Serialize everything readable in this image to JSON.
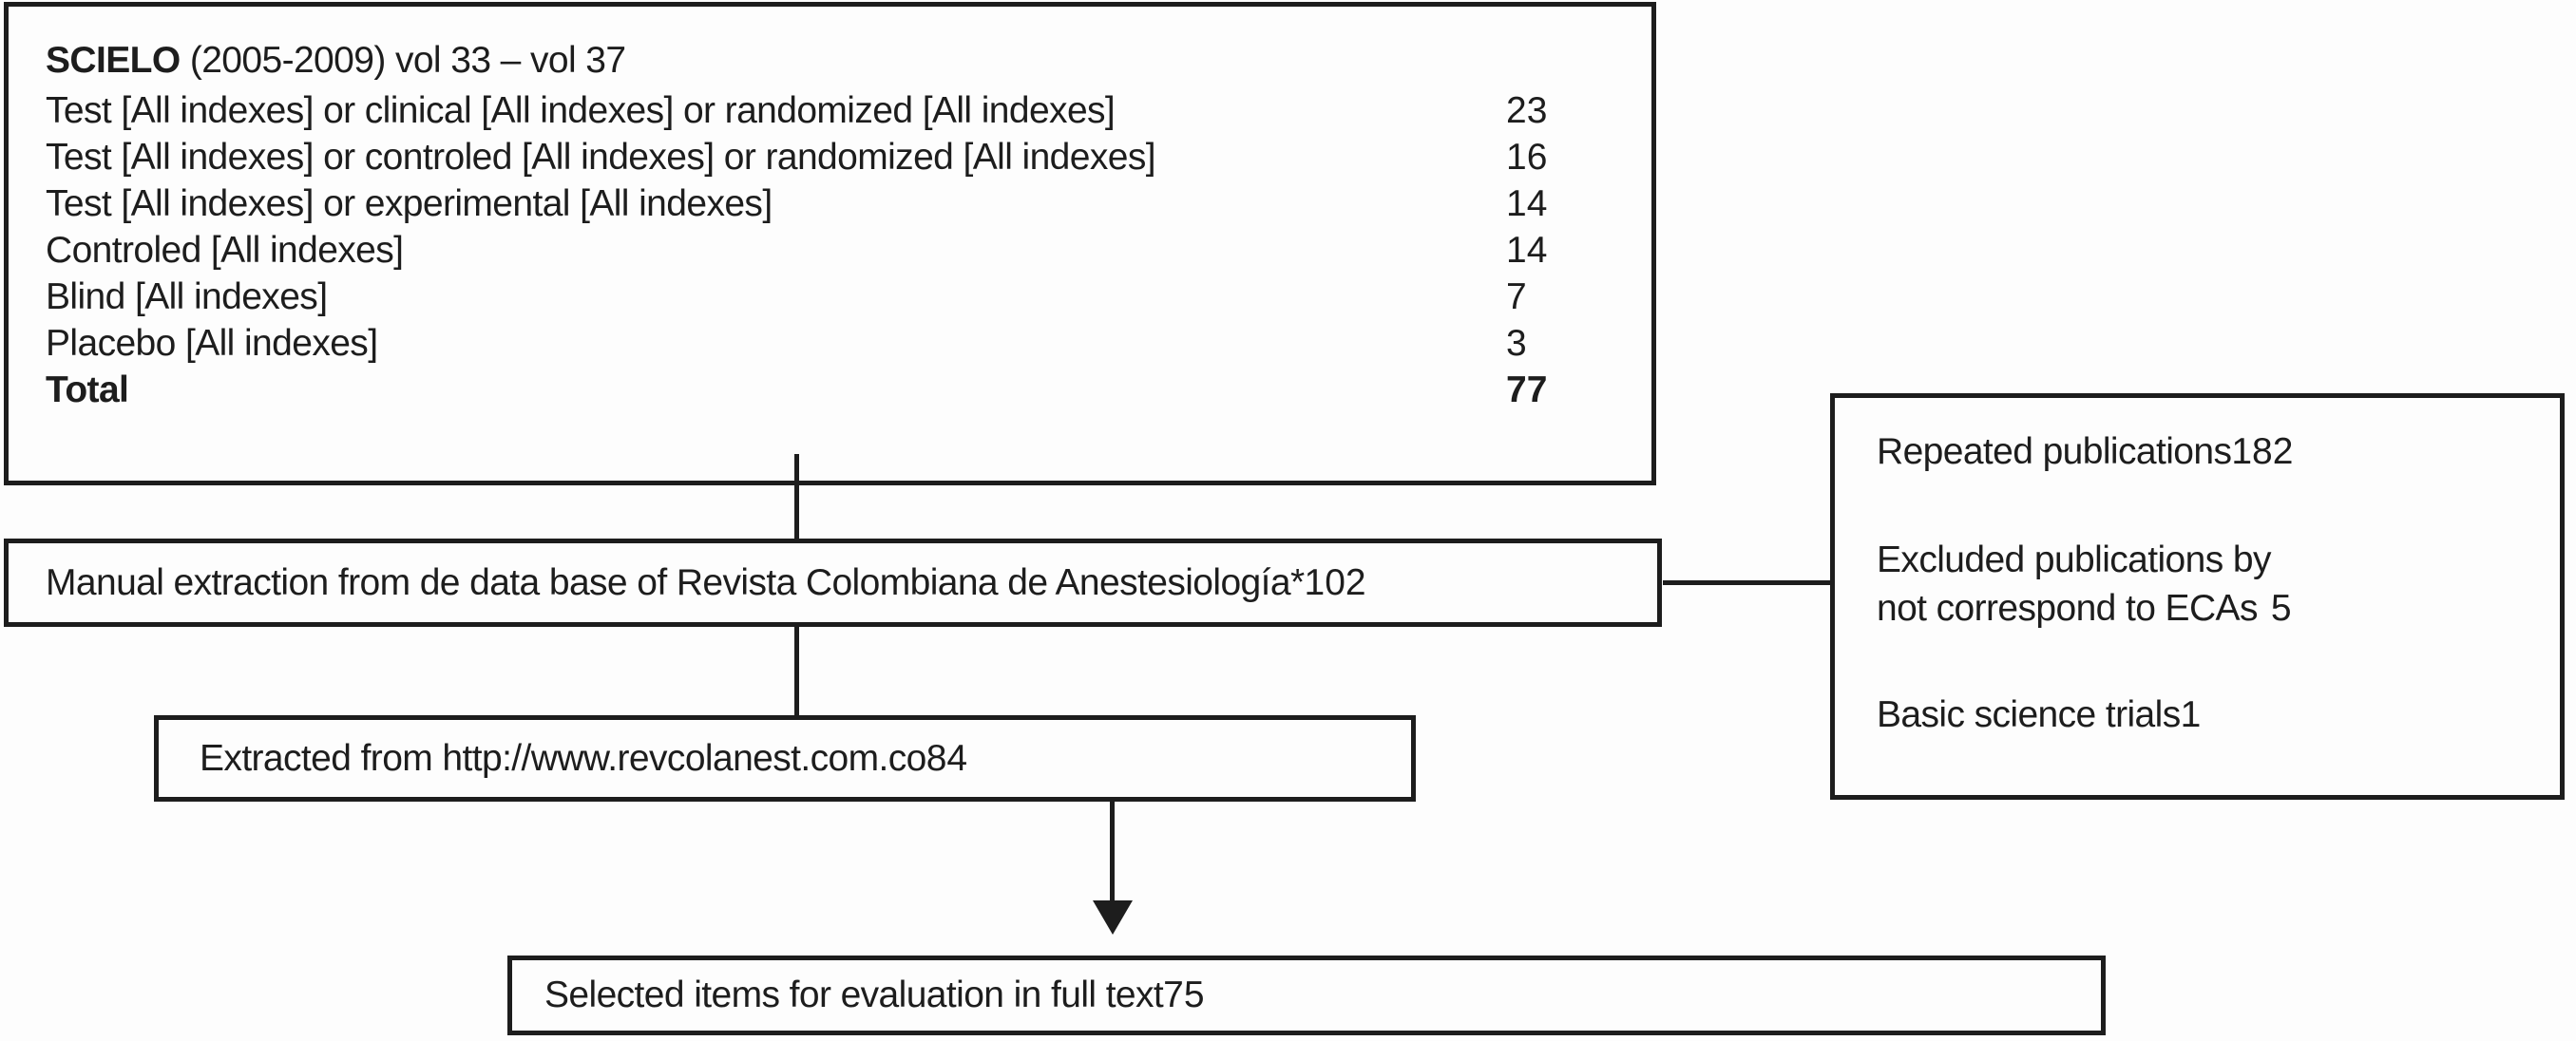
{
  "colors": {
    "line": "#1d1d1d",
    "background": "#fdfdfd",
    "text": "#1d1d1d"
  },
  "scielo_box": {
    "title_bold": "SCIELO",
    "title_rest": " (2005-2009) vol 33 – vol 37",
    "rows": [
      {
        "label": "Test [All indexes] or clinical [All indexes] or randomized [All indexes]",
        "value": "23"
      },
      {
        "label": "Test [All indexes] or controled [All indexes] or randomized [All indexes]",
        "value": "16"
      },
      {
        "label": "Test [All indexes] or experimental [All indexes]",
        "value": "14"
      },
      {
        "label": "Controled [All indexes]",
        "value": "14"
      },
      {
        "label": "Blind [All indexes]",
        "value": "7"
      },
      {
        "label": "Placebo [All indexes]",
        "value": "3"
      }
    ],
    "total_label": "Total",
    "total_value": "77"
  },
  "manual_box": {
    "label": "Manual extraction from de data base of Revista Colombiana de Anestesiología*",
    "value": "102"
  },
  "exclusion_box": {
    "items": [
      {
        "label": "Repeated publications",
        "value": "182"
      },
      {
        "label_line1": "Excluded publications by",
        "label_line2": "not correspond to ECAs",
        "value": "5"
      },
      {
        "label": "Basic science trials",
        "value": "1"
      }
    ]
  },
  "extracted_box": {
    "label": "Extracted from http://www.revcolanest.com.co",
    "value": "84"
  },
  "selected_box": {
    "label": "Selected items for evaluation in full text",
    "value": "75"
  }
}
